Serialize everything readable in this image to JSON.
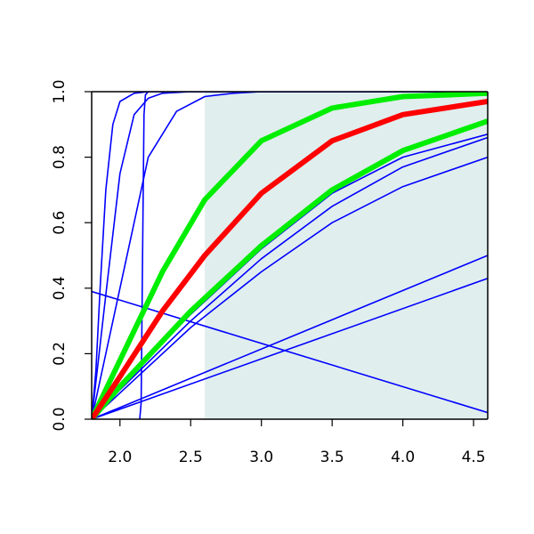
{
  "chart_data": {
    "type": "line",
    "title": "",
    "xlabel": "",
    "ylabel": "",
    "xlim": [
      1.8,
      4.6
    ],
    "ylim": [
      0.0,
      1.0
    ],
    "xticks": [
      2.0,
      2.5,
      3.0,
      3.5,
      4.0,
      4.5
    ],
    "xtick_labels": [
      "2.0",
      "2.5",
      "3.0",
      "3.5",
      "4.0",
      "4.5"
    ],
    "yticks": [
      0.0,
      0.2,
      0.4,
      0.6,
      0.8,
      1.0
    ],
    "ytick_labels": [
      "0.0",
      "0.2",
      "0.4",
      "0.6",
      "0.8",
      "1.0"
    ],
    "grid": false,
    "legend": "none",
    "shaded_region": {
      "x": [
        2.6,
        4.6
      ],
      "y": [
        0.0,
        1.0
      ],
      "color": "#e0eeee"
    },
    "series": [
      {
        "color": "#0000ff",
        "width": "thin",
        "x": [
          1.8,
          1.83,
          1.86,
          1.9,
          1.95,
          2.0,
          2.1,
          2.2,
          4.6
        ],
        "y": [
          0.0,
          0.15,
          0.4,
          0.7,
          0.9,
          0.97,
          0.995,
          1.0,
          1.0
        ]
      },
      {
        "color": "#0000ff",
        "width": "thin",
        "x": [
          1.8,
          1.9,
          2.0,
          2.1,
          2.2,
          2.3,
          2.5,
          4.6
        ],
        "y": [
          0.0,
          0.38,
          0.75,
          0.93,
          0.98,
          0.995,
          1.0,
          1.0
        ]
      },
      {
        "color": "#0000ff",
        "width": "thin",
        "x": [
          2.14,
          2.15,
          2.16,
          2.17,
          2.18,
          2.2,
          2.3,
          4.6
        ],
        "y": [
          0.0,
          0.05,
          0.5,
          0.93,
          0.99,
          1.0,
          1.0,
          1.0
        ]
      },
      {
        "color": "#0000ff",
        "width": "thin",
        "x": [
          1.8,
          2.0,
          2.2,
          2.4,
          2.6,
          2.8,
          3.0,
          3.5,
          4.6
        ],
        "y": [
          0.0,
          0.4,
          0.8,
          0.94,
          0.985,
          0.995,
          1.0,
          1.0,
          1.0
        ]
      },
      {
        "color": "#0000ff",
        "width": "thin",
        "x": [
          1.8,
          2.0,
          2.5,
          3.0,
          3.5,
          4.0,
          4.6
        ],
        "y": [
          0.0,
          0.1,
          0.32,
          0.52,
          0.69,
          0.8,
          0.87
        ]
      },
      {
        "color": "#0000ff",
        "width": "thin",
        "x": [
          1.8,
          2.0,
          2.5,
          3.0,
          3.5,
          4.0,
          4.6
        ],
        "y": [
          0.0,
          0.09,
          0.3,
          0.49,
          0.65,
          0.77,
          0.86
        ]
      },
      {
        "color": "#0000ff",
        "width": "thin",
        "x": [
          1.8,
          2.0,
          2.5,
          3.0,
          3.5,
          4.0,
          4.6
        ],
        "y": [
          0.0,
          0.08,
          0.28,
          0.45,
          0.6,
          0.71,
          0.8
        ]
      },
      {
        "color": "#0000ff",
        "width": "thin",
        "x": [
          1.8,
          4.6
        ],
        "y": [
          0.0,
          0.5
        ]
      },
      {
        "color": "#0000ff",
        "width": "thin",
        "x": [
          1.8,
          4.6
        ],
        "y": [
          0.0,
          0.43
        ]
      },
      {
        "color": "#0000ff",
        "width": "thin",
        "x": [
          1.8,
          4.6
        ],
        "y": [
          0.39,
          0.02
        ]
      },
      {
        "color": "#00ee00",
        "width": "thick",
        "x": [
          1.8,
          2.0,
          2.3,
          2.6,
          3.0,
          3.5,
          4.0,
          4.6
        ],
        "y": [
          0.0,
          0.18,
          0.45,
          0.67,
          0.85,
          0.95,
          0.985,
          0.995
        ]
      },
      {
        "color": "#00ee00",
        "width": "thick",
        "x": [
          1.8,
          2.0,
          2.5,
          3.0,
          3.5,
          4.0,
          4.6
        ],
        "y": [
          0.0,
          0.1,
          0.33,
          0.53,
          0.7,
          0.82,
          0.91
        ]
      },
      {
        "color": "#ff0000",
        "width": "thick",
        "x": [
          1.8,
          2.0,
          2.3,
          2.6,
          3.0,
          3.5,
          4.0,
          4.6
        ],
        "y": [
          0.0,
          0.13,
          0.33,
          0.5,
          0.69,
          0.85,
          0.93,
          0.97
        ]
      }
    ]
  }
}
